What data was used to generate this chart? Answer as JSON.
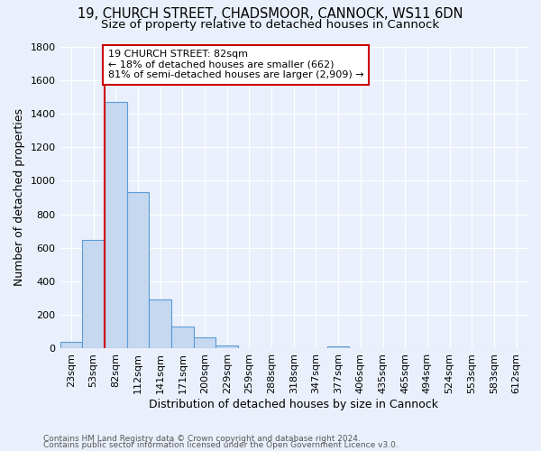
{
  "title": "19, CHURCH STREET, CHADSMOOR, CANNOCK, WS11 6DN",
  "subtitle": "Size of property relative to detached houses in Cannock",
  "xlabel": "Distribution of detached houses by size in Cannock",
  "ylabel": "Number of detached properties",
  "footnote1": "Contains HM Land Registry data © Crown copyright and database right 2024.",
  "footnote2": "Contains public sector information licensed under the Open Government Licence v3.0.",
  "categories": [
    "23sqm",
    "53sqm",
    "82sqm",
    "112sqm",
    "141sqm",
    "171sqm",
    "200sqm",
    "229sqm",
    "259sqm",
    "288sqm",
    "318sqm",
    "347sqm",
    "377sqm",
    "406sqm",
    "435sqm",
    "465sqm",
    "494sqm",
    "524sqm",
    "553sqm",
    "583sqm",
    "612sqm"
  ],
  "values": [
    40,
    650,
    1470,
    930,
    290,
    130,
    65,
    20,
    0,
    0,
    0,
    0,
    15,
    0,
    0,
    0,
    0,
    0,
    0,
    0,
    0
  ],
  "bar_color": "#c5d8f0",
  "bar_edge_color": "#5b9bd5",
  "highlight_index": 2,
  "highlight_line_color": "#cc0000",
  "annotation_line1": "19 CHURCH STREET: 82sqm",
  "annotation_line2": "← 18% of detached houses are smaller (662)",
  "annotation_line3": "81% of semi-detached houses are larger (2,909) →",
  "annotation_box_color": "#ffffff",
  "annotation_box_edge": "#cc0000",
  "ylim": [
    0,
    1800
  ],
  "yticks": [
    0,
    200,
    400,
    600,
    800,
    1000,
    1200,
    1400,
    1600,
    1800
  ],
  "background_color": "#eaf0fb",
  "grid_color": "#ffffff",
  "title_fontsize": 10.5,
  "subtitle_fontsize": 9.5,
  "axis_fontsize": 9,
  "tick_fontsize": 8,
  "footnote_fontsize": 6.5
}
